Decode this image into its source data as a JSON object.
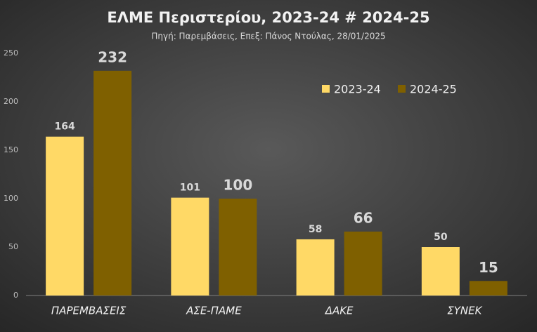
{
  "chart_data": {
    "type": "bar",
    "title": "ΕΛΜΕ Περιστερίου, 2023-24 # 2024-25",
    "subtitle": "Πηγή: Παρεμβάσεις, Επεξ: Πάνος Ντούλας, 28/01/2025",
    "categories": [
      "ΠΑΡΕΜΒΑΣΕΙΣ",
      "ΑΣΕ-ΠΑΜΕ",
      "ΔΑΚΕ",
      "ΣΥΝΕΚ"
    ],
    "series": [
      {
        "name": "2023-24",
        "color": "#ffd966",
        "values": [
          164,
          101,
          58,
          50
        ]
      },
      {
        "name": "2024-25",
        "color": "#7f6000",
        "values": [
          232,
          100,
          66,
          15
        ]
      }
    ],
    "ylim": [
      0,
      250
    ],
    "yticks": [
      0,
      50,
      100,
      150,
      200,
      250
    ],
    "grid": false
  }
}
